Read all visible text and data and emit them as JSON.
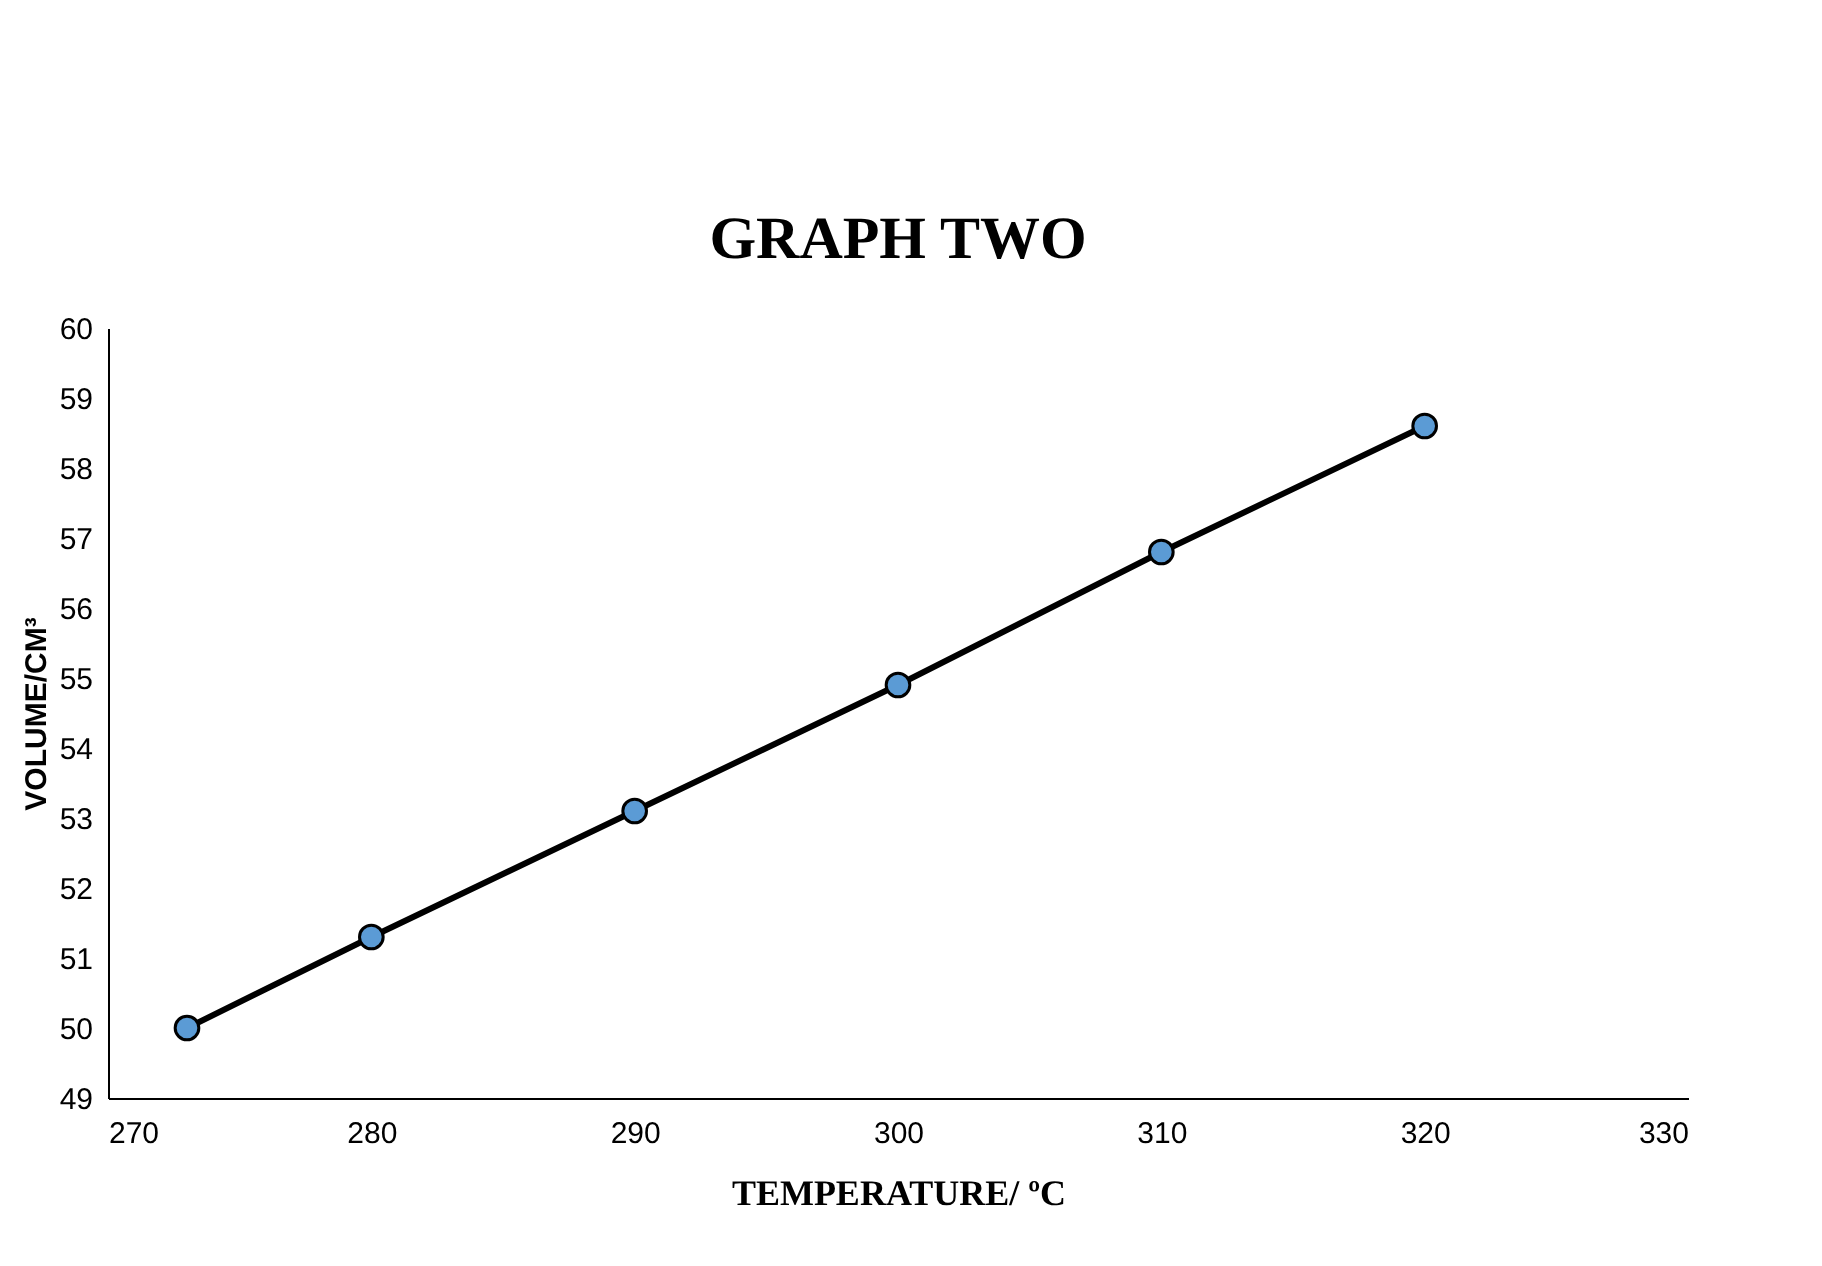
{
  "chart_data": {
    "type": "line",
    "title": "GRAPH TWO",
    "xlabel": "TEMPERATURE/ ºC",
    "ylabel": "VOLUME/CM³",
    "x": [
      273,
      280,
      290,
      300,
      310,
      320
    ],
    "series": [
      {
        "color": "#000000",
        "values": [
          50,
          51.3,
          53.1,
          54.9,
          56.8,
          58.6
        ]
      }
    ],
    "xlim": [
      270,
      330
    ],
    "xticks": [
      270,
      280,
      290,
      300,
      310,
      320,
      330
    ],
    "ylim": [
      49,
      60
    ],
    "yticks": [
      49,
      50,
      51,
      52,
      53,
      54,
      55,
      56,
      57,
      58,
      59,
      60
    ],
    "grid": false,
    "legend": false,
    "marker": "circle",
    "line_style": "solid"
  }
}
